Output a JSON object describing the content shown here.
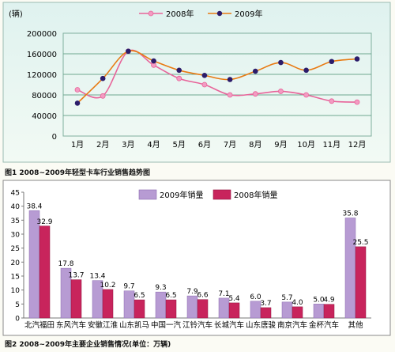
{
  "chart_data": [
    {
      "type": "line",
      "title": "图1 2008~2009年轻型卡车行业销售趋势图",
      "ylabel": "(辆)",
      "ylim": [
        0,
        200000
      ],
      "yticks": [
        0,
        40000,
        80000,
        120000,
        160000,
        200000
      ],
      "categories": [
        "1月",
        "2月",
        "3月",
        "4月",
        "5月",
        "6月",
        "7月",
        "8月",
        "9月",
        "10月",
        "11月",
        "12月"
      ],
      "legend_position": "top",
      "grid": true,
      "series": [
        {
          "name": "2008年",
          "color": "#e8649a",
          "values": [
            90000,
            78000,
            165000,
            138000,
            112000,
            100000,
            80000,
            82000,
            87000,
            80000,
            68000,
            66000
          ]
        },
        {
          "name": "2009年",
          "color": "#e87a12",
          "marker_color": "#2c1c6a",
          "values": [
            64000,
            112000,
            165000,
            146000,
            128000,
            118000,
            110000,
            126000,
            143000,
            128000,
            145000,
            150000
          ]
        }
      ]
    },
    {
      "type": "bar",
      "title": "图2 2008~2009年主要企业销售情况(单位：万辆)",
      "categories": [
        "北汽福田",
        "东风汽车",
        "安徽江淮",
        "山东凯马",
        "中国一汽",
        "江铃汽车",
        "长城汽车",
        "山东唐骏",
        "南京汽车",
        "金杯汽车",
        "其他"
      ],
      "ylim": [
        0,
        45
      ],
      "yticks": [
        0,
        5,
        10,
        15,
        20,
        25,
        30,
        35,
        40,
        45
      ],
      "legend_position": "top",
      "series": [
        {
          "name": "2009年销量",
          "color": "#b79bd3",
          "values": [
            38.4,
            17.8,
            13.4,
            9.7,
            9.3,
            7.9,
            7.1,
            6.0,
            5.7,
            5.0,
            35.8
          ]
        },
        {
          "name": "2008年销量",
          "color": "#c8245c",
          "values": [
            32.9,
            13.7,
            10.2,
            6.5,
            6.5,
            6.6,
            5.4,
            3.7,
            4.0,
            4.9,
            25.5
          ]
        }
      ]
    }
  ]
}
